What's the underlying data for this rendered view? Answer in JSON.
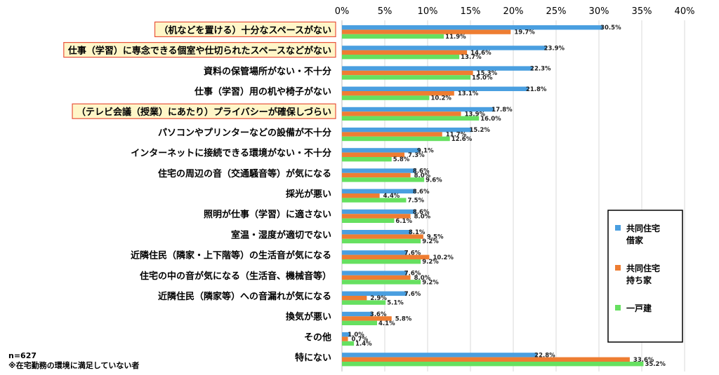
{
  "chart_data": {
    "type": "bar",
    "orientation": "horizontal",
    "categories": [
      "（机などを置ける）十分なスペースがない",
      "仕事（学習）に専念できる個室や仕切られたスペースなどがない",
      "資料の保管場所がない・不十分",
      "仕事（学習）用の机や椅子がない",
      "（テレビ会議（授業）にあたり）プライバシーが確保しづらい",
      "パソコンやプリンターなどの設備が不十分",
      "インターネットに接続できる環境がない・不十分",
      "住宅の周辺の音（交通騒音等）が気になる",
      "採光が悪い",
      "照明が仕事（学習）に適さない",
      "室温・湿度が適切でない",
      "近隣住民（隣家・上下階等）の生活音が気になる",
      "住宅の中の音が気になる（生活音、機械音等）",
      "近隣住民（隣家等）への音漏れが気になる",
      "換気が悪い",
      "その他",
      "特にない"
    ],
    "highlighted": [
      true,
      true,
      false,
      false,
      true,
      false,
      false,
      false,
      false,
      false,
      false,
      false,
      false,
      false,
      false,
      false,
      false
    ],
    "series": [
      {
        "name": "共同住宅借家",
        "legend_lines": [
          "共同住宅",
          "借家"
        ],
        "color": "#4a9fe0",
        "values": [
          30.5,
          23.9,
          22.3,
          21.8,
          17.8,
          15.2,
          9.1,
          8.6,
          8.6,
          8.6,
          8.1,
          7.6,
          7.6,
          7.6,
          3.6,
          1.0,
          22.8
        ],
        "labels": [
          "30.5%",
          "23.9%",
          "22.3%",
          "21.8%",
          "17.8%",
          "15.2%",
          "9.1%",
          "8.6%",
          "8.6%",
          "8.6%",
          "8.1%",
          "7.6%",
          "7.6%",
          "7.6%",
          "3.6%",
          "1.0%",
          "22.8%"
        ]
      },
      {
        "name": "共同住宅持ち家",
        "legend_lines": [
          "共同住宅",
          "持ち家"
        ],
        "color": "#ee7d32",
        "values": [
          19.7,
          14.6,
          15.3,
          13.1,
          13.9,
          11.7,
          7.3,
          8.0,
          4.4,
          8.0,
          9.5,
          10.2,
          8.0,
          2.9,
          5.8,
          0.7,
          33.6
        ],
        "labels": [
          "19.7%",
          "14.6%",
          "15.3%",
          "13.1%",
          "13.9%",
          "11.7%",
          "7.3%",
          "8.0%",
          "4.4%",
          "8.0%",
          "9.5%",
          "10.2%",
          "8.0%",
          "2.9%",
          "5.8%",
          "0.7%",
          "33.6%"
        ]
      },
      {
        "name": "一戸建",
        "legend_lines": [
          "一戸建"
        ],
        "color": "#66e060",
        "values": [
          11.9,
          13.7,
          15.0,
          10.2,
          16.0,
          12.6,
          5.8,
          9.6,
          7.5,
          6.1,
          9.2,
          9.2,
          9.2,
          5.1,
          4.1,
          1.4,
          35.2
        ],
        "labels": [
          "11.9%",
          "13.7%",
          "15.0%",
          "10.2%",
          "16.0%",
          "12.6%",
          "5.8%",
          "9.6%",
          "7.5%",
          "6.1%",
          "9.2%",
          "9.2%",
          "9.2%",
          "5.1%",
          "4.1%",
          "1.4%",
          "35.2%"
        ]
      }
    ],
    "xlim": [
      0,
      40
    ],
    "ticks": [
      0,
      5,
      10,
      15,
      20,
      25,
      30,
      35,
      40
    ],
    "tick_labels": [
      "0%",
      "5%",
      "10%",
      "15%",
      "20%",
      "25%",
      "30%",
      "35%",
      "40%"
    ],
    "grid": true,
    "legend_position": "right",
    "notes": [
      "n=627",
      "※在宅勤務の環境に満足していない者"
    ]
  }
}
